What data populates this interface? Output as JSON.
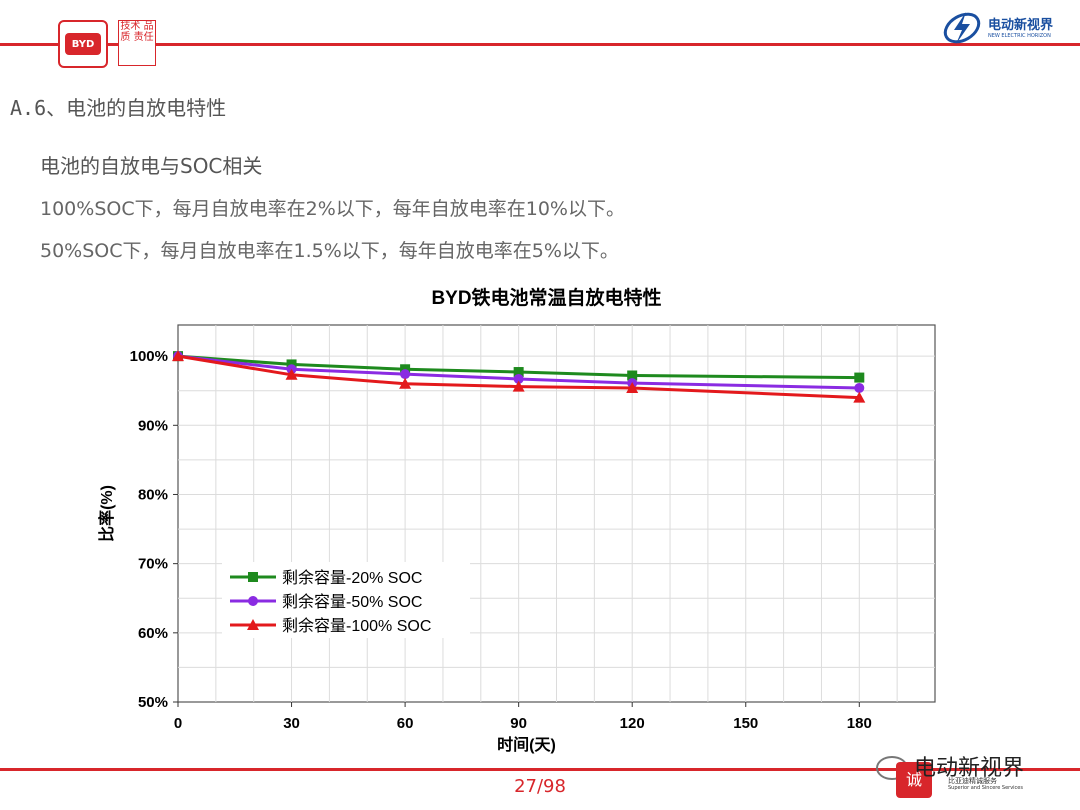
{
  "header": {
    "logo_text": "BYD",
    "seal_text": "技术 品质 责任",
    "brand_name": "电动新视界",
    "brand_sub": "NEW ELECTRIC HORIZON"
  },
  "slide": {
    "section_title": "A.6、电池的自放电特性",
    "line1": "电池的自放电与SOC相关",
    "line2": "100%SOC下，每月自放电率在2%以下，每年自放电率在10%以下。",
    "line3": "50%SOC下，每月自放电率在1.5%以下，每年自放电率在5%以下。",
    "page_number": "27/98"
  },
  "watermark": {
    "text": "电动新视界",
    "seal": "诚",
    "sub1": "比亚迪精诚服务",
    "sub2": "Superior and Sincere Services"
  },
  "chart_data": {
    "type": "line",
    "title": "BYD铁电池常温自放电特性",
    "xlabel": "时间(天)",
    "ylabel": "比率(%)",
    "x": [
      0,
      30,
      60,
      90,
      120,
      180
    ],
    "xticks": [
      0,
      30,
      60,
      90,
      120,
      150,
      180
    ],
    "yticks": [
      50,
      60,
      70,
      80,
      90,
      100
    ],
    "ytick_labels": [
      "50%",
      "60%",
      "70%",
      "80%",
      "90%",
      "100%"
    ],
    "xlim": [
      0,
      200
    ],
    "ylim": [
      50,
      104.5
    ],
    "grid": true,
    "legend_position": "lower-left",
    "series": [
      {
        "name": "剩余容量-20% SOC",
        "values": [
          100,
          98.8,
          98.1,
          97.7,
          97.2,
          96.9
        ],
        "color": "#1e8a1e",
        "marker": "square"
      },
      {
        "name": "剩余容量-50% SOC",
        "values": [
          100,
          98.1,
          97.4,
          96.7,
          96.1,
          95.4
        ],
        "color": "#8a2be2",
        "marker": "circle"
      },
      {
        "name": "剩余容量-100% SOC",
        "values": [
          100,
          97.3,
          96.0,
          95.6,
          95.4,
          94.0
        ],
        "color": "#e3191c",
        "marker": "triangle"
      }
    ]
  }
}
